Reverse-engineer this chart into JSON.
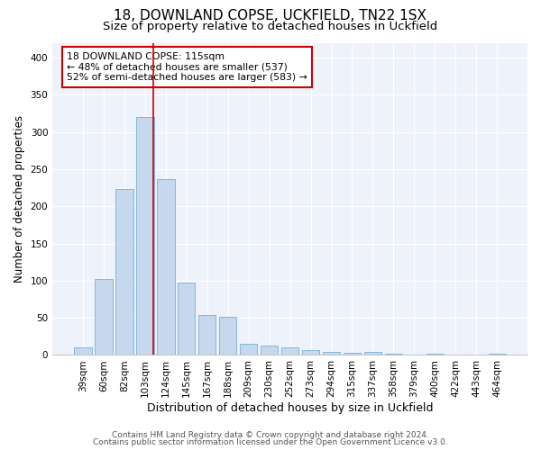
{
  "title1": "18, DOWNLAND COPSE, UCKFIELD, TN22 1SX",
  "title2": "Size of property relative to detached houses in Uckfield",
  "xlabel": "Distribution of detached houses by size in Uckfield",
  "ylabel": "Number of detached properties",
  "footer1": "Contains HM Land Registry data © Crown copyright and database right 2024.",
  "footer2": "Contains public sector information licensed under the Open Government Licence v3.0.",
  "categories": [
    "39sqm",
    "60sqm",
    "82sqm",
    "103sqm",
    "124sqm",
    "145sqm",
    "167sqm",
    "188sqm",
    "209sqm",
    "230sqm",
    "252sqm",
    "273sqm",
    "294sqm",
    "315sqm",
    "337sqm",
    "358sqm",
    "379sqm",
    "400sqm",
    "422sqm",
    "443sqm",
    "464sqm"
  ],
  "values": [
    10,
    102,
    223,
    320,
    237,
    97,
    54,
    52,
    15,
    13,
    10,
    7,
    4,
    3,
    4,
    2,
    0,
    2,
    0,
    0,
    2
  ],
  "bar_color": "#c5d8ed",
  "bar_edge_color": "#7aafd4",
  "vline_color": "#cc0000",
  "vline_x": 3.42,
  "annotation_line1": "18 DOWNLAND COPSE: 115sqm",
  "annotation_line2": "← 48% of detached houses are smaller (537)",
  "annotation_line3": "52% of semi-detached houses are larger (583) →",
  "annotation_box_color": "white",
  "annotation_edge_color": "#cc0000",
  "ylim": [
    0,
    420
  ],
  "yticks": [
    0,
    50,
    100,
    150,
    200,
    250,
    300,
    350,
    400
  ],
  "bg_color": "#eef2fa",
  "grid_color": "white",
  "title1_fontsize": 11,
  "title2_fontsize": 9.5,
  "xlabel_fontsize": 9,
  "ylabel_fontsize": 8.5,
  "tick_fontsize": 7.5,
  "annotation_fontsize": 7.8,
  "footer_fontsize": 6.5
}
